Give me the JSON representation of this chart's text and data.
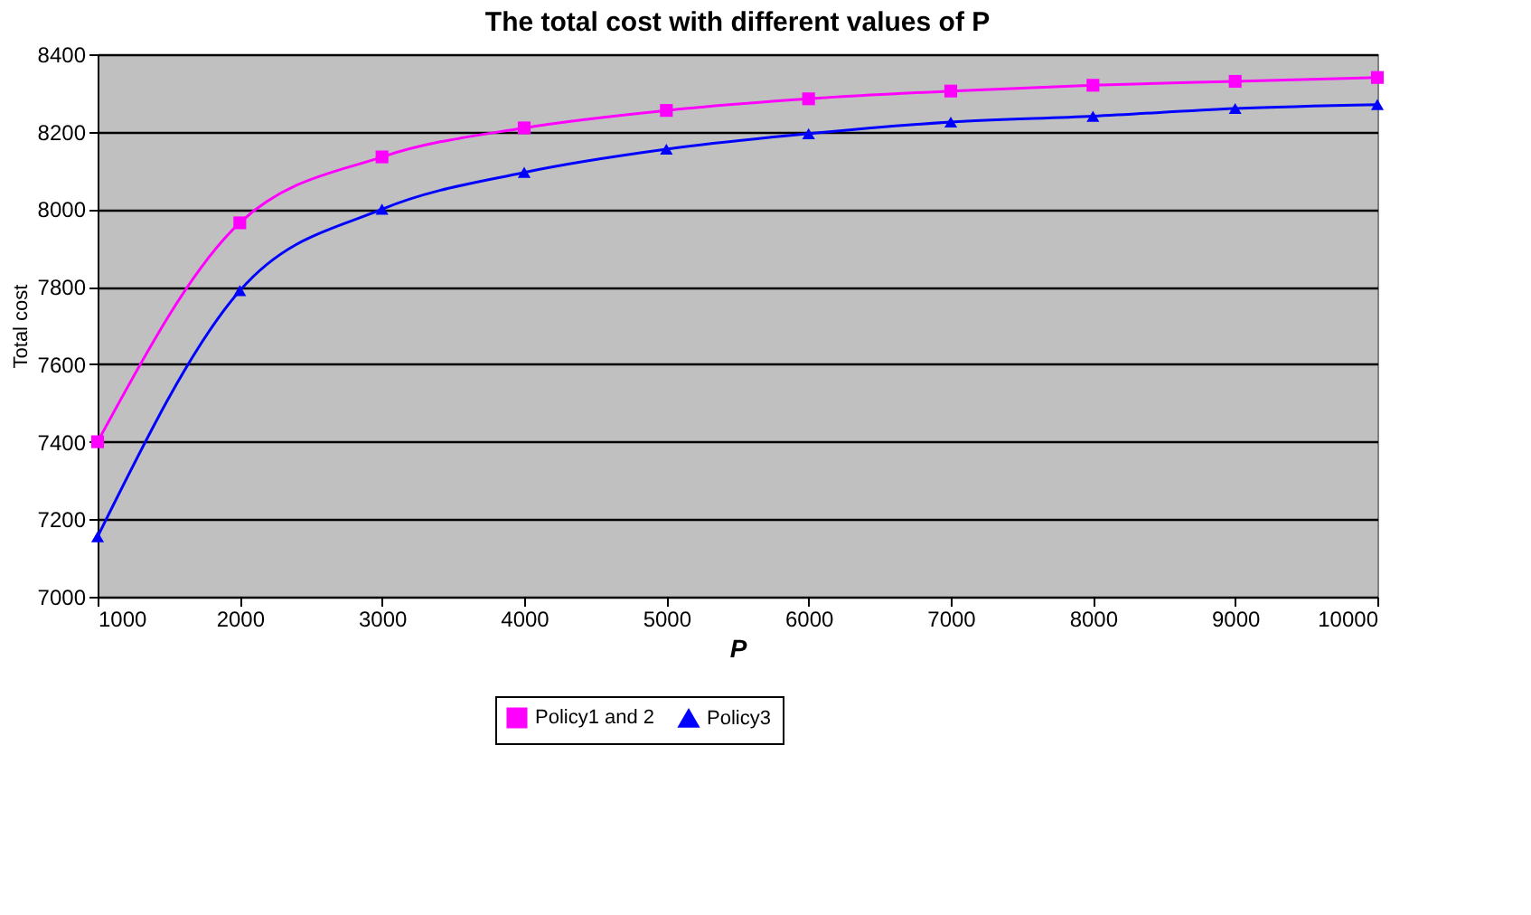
{
  "chart_data": {
    "type": "line",
    "title": "The total cost with different values of P",
    "xlabel": "P",
    "ylabel": "Total cost",
    "x": [
      1000,
      2000,
      3000,
      4000,
      5000,
      6000,
      7000,
      8000,
      9000,
      10000
    ],
    "series": [
      {
        "name": "Policy1 and 2",
        "color": "#ff00ff",
        "marker": "square",
        "values": [
          7400,
          7965,
          8135,
          8210,
          8255,
          8285,
          8305,
          8320,
          8330,
          8340
        ]
      },
      {
        "name": "Policy3",
        "color": "#0000ff",
        "marker": "triangle",
        "values": [
          7155,
          7790,
          8000,
          8095,
          8155,
          8195,
          8225,
          8240,
          8260,
          8270
        ]
      }
    ],
    "xlim": [
      1000,
      10000
    ],
    "xticks": [
      1000,
      2000,
      3000,
      4000,
      5000,
      6000,
      7000,
      8000,
      9000,
      10000
    ],
    "ylim": [
      7000,
      8400
    ],
    "yticks": [
      7000,
      7200,
      7400,
      7600,
      7800,
      8000,
      8200,
      8400
    ],
    "grid": "y",
    "legend": "bottom",
    "line_style": "solid"
  }
}
